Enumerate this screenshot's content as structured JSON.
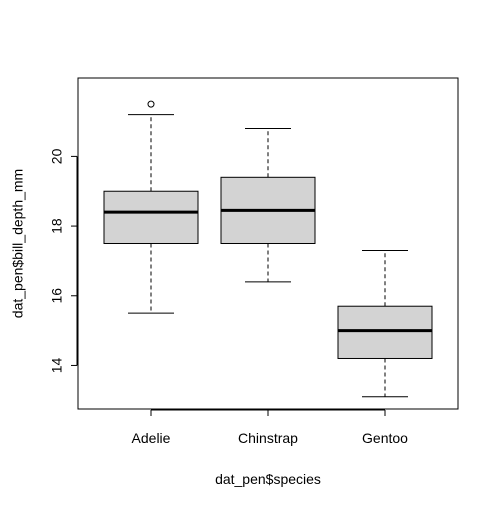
{
  "chart_data": {
    "type": "boxplot",
    "xlabel": "dat_pen$species",
    "ylabel": "dat_pen$bill_depth_mm",
    "ylim": [
      12.75,
      22.25
    ],
    "yticks": [
      14,
      16,
      18,
      20
    ],
    "grid": false,
    "categories": [
      "Adelie",
      "Chinstrap",
      "Gentoo"
    ],
    "boxes": [
      {
        "name": "Adelie",
        "whisker_low": 15.5,
        "q1": 17.5,
        "median": 18.4,
        "q3": 19.0,
        "whisker_high": 21.2,
        "outliers": [
          21.5
        ]
      },
      {
        "name": "Chinstrap",
        "whisker_low": 16.4,
        "q1": 17.5,
        "median": 18.45,
        "q3": 19.4,
        "whisker_high": 20.8,
        "outliers": []
      },
      {
        "name": "Gentoo",
        "whisker_low": 13.1,
        "q1": 14.2,
        "median": 15.0,
        "q3": 15.7,
        "whisker_high": 17.3,
        "outliers": []
      }
    ],
    "colors": {
      "box_fill": "#d3d3d3",
      "line": "#000000"
    }
  }
}
